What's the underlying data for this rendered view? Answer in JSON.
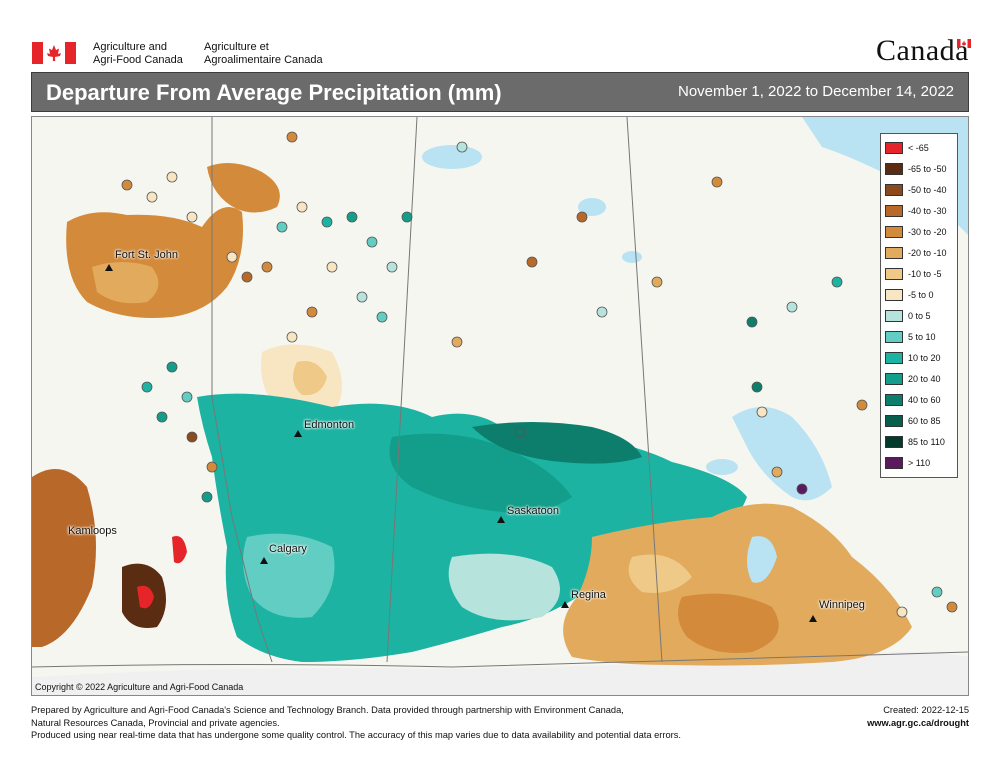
{
  "header": {
    "agency_en_line1": "Agriculture and",
    "agency_en_line2": "Agri-Food Canada",
    "agency_fr_line1": "Agriculture et",
    "agency_fr_line2": "Agroalimentaire Canada",
    "wordmark": "Canada"
  },
  "title": "Departure From Average Precipitation (mm)",
  "date_range": "November 1, 2022 to December 14, 2022",
  "colors": {
    "title_bar": "#6b6b6b",
    "water": "#b9e2f3",
    "land": "#f6f6f0",
    "flag_red": "#e5252a"
  },
  "legend": {
    "items": [
      {
        "label": "< -65",
        "color": "#e5252a"
      },
      {
        "label": "-65 to -50",
        "color": "#5a2d12"
      },
      {
        "label": "-50 to -40",
        "color": "#8b4a1e"
      },
      {
        "label": "-40 to -30",
        "color": "#b8692a"
      },
      {
        "label": "-30 to -20",
        "color": "#d38a3a"
      },
      {
        "label": "-20 to -10",
        "color": "#e2aa5c"
      },
      {
        "label": "-10 to -5",
        "color": "#efc987"
      },
      {
        "label": "-5 to 0",
        "color": "#f8e6c2"
      },
      {
        "label": "0 to 5",
        "color": "#b6e3dc"
      },
      {
        "label": "5 to 10",
        "color": "#62cdc2"
      },
      {
        "label": "10 to 20",
        "color": "#1cb3a2"
      },
      {
        "label": "20 to 40",
        "color": "#129e8a"
      },
      {
        "label": "40 to 60",
        "color": "#0c7e6b"
      },
      {
        "label": "60 to 85",
        "color": "#075e4d"
      },
      {
        "label": "85 to 110",
        "color": "#033a2c"
      },
      {
        "label": "> 110",
        "color": "#5b1a5e"
      }
    ]
  },
  "cities": [
    {
      "name": "Fort St. John"
    },
    {
      "name": "Edmonton"
    },
    {
      "name": "Saskatoon"
    },
    {
      "name": "Calgary"
    },
    {
      "name": "Kamloops"
    },
    {
      "name": "Regina"
    },
    {
      "name": "Winnipeg"
    }
  ],
  "copyright": "Copyright © 2022 Agriculture and Agri-Food Canada",
  "footer": {
    "line1": "Prepared by Agriculture and Agri-Food Canada's Science and Technology Branch. Data provided through partnership with Environment Canada,",
    "line2": "Natural Resources Canada, Provincial and private agencies.",
    "line3": "Produced using near real-time data that has undergone some quality control. The accuracy of this map varies due to data availability and potential data errors.",
    "created": "Created: 2022-12-15",
    "url": "www.agr.gc.ca/drought"
  }
}
